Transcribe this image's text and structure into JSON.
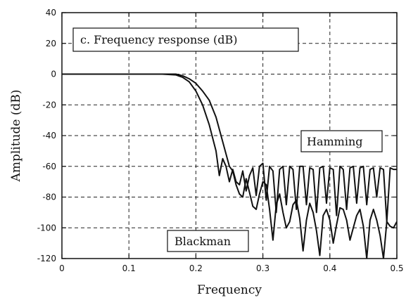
{
  "chart_data": {
    "type": "line",
    "title": "",
    "xlabel": "Frequency",
    "ylabel": "Amplitude (dB)",
    "xlim": [
      0,
      0.5
    ],
    "ylim": [
      -120,
      40
    ],
    "x_ticks": [
      "0",
      "0.1",
      "0.2",
      "0.3",
      "0.4",
      "0.5"
    ],
    "y_ticks": [
      "40",
      "20",
      "0",
      "-20",
      "-40",
      "-60",
      "-80",
      "-100",
      "-120"
    ],
    "grid": true,
    "series": [
      {
        "name": "Hamming",
        "x": [
          0,
          0.05,
          0.1,
          0.15,
          0.17,
          0.18,
          0.19,
          0.2,
          0.21,
          0.22,
          0.23,
          0.235,
          0.24,
          0.245,
          0.25,
          0.255,
          0.26,
          0.265,
          0.27,
          0.275,
          0.28,
          0.285,
          0.29,
          0.295,
          0.3,
          0.305,
          0.31,
          0.315,
          0.32,
          0.325,
          0.33,
          0.335,
          0.34,
          0.345,
          0.35,
          0.355,
          0.36,
          0.365,
          0.37,
          0.375,
          0.38,
          0.385,
          0.39,
          0.395,
          0.4,
          0.405,
          0.41,
          0.415,
          0.42,
          0.425,
          0.43,
          0.435,
          0.44,
          0.445,
          0.45,
          0.455,
          0.46,
          0.465,
          0.47,
          0.475,
          0.48,
          0.485,
          0.49,
          0.495,
          0.5
        ],
        "y": [
          0,
          0,
          0,
          0,
          -0.5,
          -2,
          -5,
          -11,
          -20,
          -33,
          -50,
          -66,
          -55,
          -60,
          -70,
          -62,
          -70,
          -72,
          -63,
          -76,
          -66,
          -61,
          -79,
          -60,
          -58,
          -82,
          -60,
          -63,
          -90,
          -62,
          -60,
          -85,
          -60,
          -62,
          -88,
          -60,
          -60,
          -85,
          -61,
          -62,
          -90,
          -61,
          -60,
          -84,
          -61,
          -62,
          -92,
          -60,
          -62,
          -88,
          -61,
          -60,
          -84,
          -61,
          -60,
          -85,
          -62,
          -61,
          -80,
          -61,
          -62,
          -96,
          -61,
          -62,
          -62
        ]
      },
      {
        "name": "Blackman",
        "x": [
          0,
          0.05,
          0.1,
          0.15,
          0.17,
          0.18,
          0.19,
          0.2,
          0.21,
          0.22,
          0.23,
          0.24,
          0.25,
          0.255,
          0.26,
          0.265,
          0.27,
          0.275,
          0.28,
          0.285,
          0.29,
          0.295,
          0.3,
          0.305,
          0.31,
          0.315,
          0.32,
          0.325,
          0.33,
          0.335,
          0.34,
          0.345,
          0.35,
          0.355,
          0.36,
          0.365,
          0.37,
          0.375,
          0.38,
          0.385,
          0.39,
          0.395,
          0.4,
          0.405,
          0.41,
          0.415,
          0.42,
          0.425,
          0.43,
          0.435,
          0.44,
          0.445,
          0.45,
          0.455,
          0.46,
          0.465,
          0.47,
          0.475,
          0.48,
          0.485,
          0.49,
          0.495,
          0.5
        ],
        "y": [
          0,
          0,
          0,
          0,
          0,
          -1,
          -3,
          -6,
          -11,
          -17,
          -28,
          -44,
          -60,
          -63,
          -72,
          -78,
          -80,
          -68,
          -77,
          -86,
          -88,
          -78,
          -70,
          -72,
          -88,
          -108,
          -85,
          -78,
          -90,
          -100,
          -96,
          -85,
          -82,
          -94,
          -115,
          -95,
          -84,
          -90,
          -102,
          -118,
          -92,
          -88,
          -95,
          -110,
          -98,
          -87,
          -88,
          -95,
          -108,
          -100,
          -92,
          -88,
          -99,
          -120,
          -95,
          -88,
          -95,
          -105,
          -120,
          -96,
          -99,
          -100,
          -96
        ]
      }
    ],
    "annotations": [
      {
        "text": "c.  Frequency response (dB)"
      },
      {
        "text": "Hamming"
      },
      {
        "text": "Blackman"
      }
    ]
  }
}
